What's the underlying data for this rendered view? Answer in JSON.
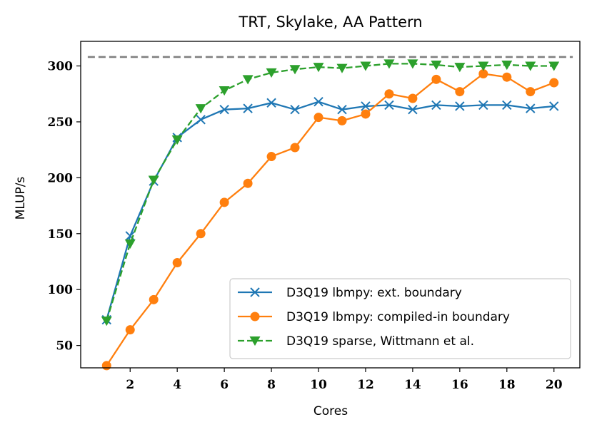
{
  "chart_data": {
    "type": "line",
    "title": "TRT, Skylake, AA Pattern",
    "xlabel": "Cores",
    "ylabel": "MLUP/s",
    "xlim": [
      -0.1,
      21.1
    ],
    "ylim": [
      30,
      322
    ],
    "xticks": [
      2,
      4,
      6,
      8,
      10,
      12,
      14,
      16,
      18,
      20
    ],
    "yticks": [
      50,
      100,
      150,
      200,
      250,
      300
    ],
    "x": [
      1,
      2,
      3,
      4,
      5,
      6,
      7,
      8,
      9,
      10,
      11,
      12,
      13,
      14,
      15,
      16,
      17,
      18,
      19,
      20
    ],
    "reference_line": {
      "y": 308,
      "x_range": [
        0.2,
        20.8
      ],
      "color": "#808080",
      "style": "dashed"
    },
    "legend_position": "lower-right",
    "series": [
      {
        "name": "D3Q19 lbmpy: ext. boundary",
        "color": "#1f77b4",
        "marker": "x",
        "linestyle": "solid",
        "values": [
          73,
          148,
          197,
          236,
          252,
          261,
          262,
          267,
          261,
          268,
          261,
          264,
          265,
          261,
          265,
          264,
          265,
          265,
          262,
          264
        ]
      },
      {
        "name": "D3Q19 lbmpy: compiled-in boundary",
        "color": "#ff7f0e",
        "marker": "circle",
        "linestyle": "solid",
        "values": [
          32,
          64,
          91,
          124,
          150,
          178,
          195,
          219,
          227,
          254,
          251,
          257,
          275,
          271,
          288,
          277,
          293,
          290,
          277,
          285
        ]
      },
      {
        "name": "D3Q19 sparse, Wittmann et al.",
        "color": "#2ca02c",
        "marker": "triangle-down",
        "linestyle": "dashed",
        "values": [
          72,
          141,
          198,
          234,
          262,
          278,
          288,
          294,
          297,
          299,
          298,
          300,
          302,
          302,
          301,
          299,
          300,
          301,
          300,
          300
        ]
      }
    ]
  }
}
